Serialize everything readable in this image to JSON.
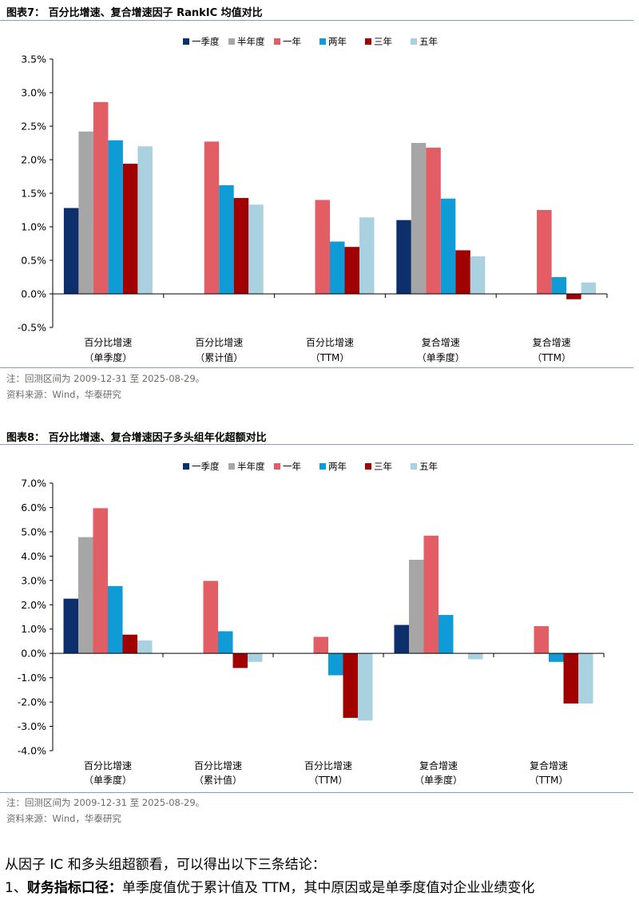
{
  "figure7": {
    "title": "图表7：  百分比增速、复合增速因子 RankIC 均值对比",
    "note": "注：回测区间为 2009-12-31 至 2025-08-29。",
    "source": "资料来源：Wind，华泰研究"
  },
  "figure8": {
    "title": "图表8：  百分比增速、复合增速因子多头组年化超额对比",
    "note": "注：回测区间为 2009-12-31 至 2025-08-29。",
    "source": "资料来源：Wind，华泰研究"
  },
  "body_text": {
    "intro": "从因子 IC 和多头组超额看，可以得出以下三条结论：",
    "item1_number": "1、",
    "item1_bold": "财务指标口径：",
    "item1_text": "单季度值优于累计值及 TTM，其中原因或是单季度值对企业业绩变化"
  },
  "colors": {
    "一季度": "#0d2f6b",
    "半年度": "#a6a6a6",
    "一年": "#e35d64",
    "两年": "#0e9bd6",
    "三年": "#a00000",
    "五年": "#a9d1e0"
  },
  "chart_data": [
    {
      "type": "bar",
      "title": "百分比增速、复合增速因子 RankIC 均值对比",
      "categories": [
        [
          "百分比增速",
          "（单季度）"
        ],
        [
          "百分比增速",
          "（累计值）"
        ],
        [
          "百分比增速",
          "（TTM）"
        ],
        [
          "复合增速",
          "（单季度）"
        ],
        [
          "复合增速",
          "（TTM）"
        ]
      ],
      "series": [
        {
          "name": "一季度",
          "values": [
            1.28,
            null,
            null,
            1.1,
            null
          ]
        },
        {
          "name": "半年度",
          "values": [
            2.42,
            null,
            null,
            2.25,
            null
          ]
        },
        {
          "name": "一年",
          "values": [
            2.86,
            2.27,
            1.4,
            2.18,
            1.25
          ]
        },
        {
          "name": "两年",
          "values": [
            2.29,
            1.62,
            0.78,
            1.42,
            0.25
          ]
        },
        {
          "name": "三年",
          "values": [
            1.94,
            1.43,
            0.7,
            0.65,
            -0.08
          ]
        },
        {
          "name": "五年",
          "values": [
            2.2,
            1.33,
            1.14,
            0.56,
            0.17
          ]
        }
      ],
      "ylim": [
        -0.5,
        3.5
      ],
      "yticks": [
        -0.5,
        0.0,
        0.5,
        1.0,
        1.5,
        2.0,
        2.5,
        3.0,
        3.5
      ],
      "ytick_labels": [
        "-0.5%",
        "0.0%",
        "0.5%",
        "1.0%",
        "1.5%",
        "2.0%",
        "2.5%",
        "3.0%",
        "3.5%"
      ],
      "legend": "top-center"
    },
    {
      "type": "bar",
      "title": "百分比增速、复合增速因子多头组年化超额对比",
      "categories": [
        [
          "百分比增速",
          "（单季度）"
        ],
        [
          "百分比增速",
          "（累计值）"
        ],
        [
          "百分比增速",
          "（TTM）"
        ],
        [
          "复合增速",
          "（单季度）"
        ],
        [
          "复合增速",
          "（TTM）"
        ]
      ],
      "series": [
        {
          "name": "一季度",
          "values": [
            2.25,
            null,
            null,
            1.17,
            null
          ]
        },
        {
          "name": "半年度",
          "values": [
            4.78,
            null,
            null,
            3.85,
            null
          ]
        },
        {
          "name": "一年",
          "values": [
            5.97,
            2.98,
            0.68,
            4.84,
            1.12
          ]
        },
        {
          "name": "两年",
          "values": [
            2.77,
            0.91,
            -0.9,
            1.58,
            -0.35
          ]
        },
        {
          "name": "三年",
          "values": [
            0.77,
            -0.6,
            -2.65,
            null,
            -2.06
          ]
        },
        {
          "name": "五年",
          "values": [
            0.53,
            -0.35,
            -2.76,
            -0.24,
            -2.06
          ]
        }
      ],
      "ylim": [
        -4.0,
        7.0
      ],
      "yticks": [
        -4,
        -3,
        -2,
        -1,
        0,
        1,
        2,
        3,
        4,
        5,
        6,
        7
      ],
      "ytick_labels": [
        "-4.0%",
        "-3.0%",
        "-2.0%",
        "-1.0%",
        "0.0%",
        "1.0%",
        "2.0%",
        "3.0%",
        "4.0%",
        "5.0%",
        "6.0%",
        "7.0%"
      ],
      "legend": "top-center"
    }
  ]
}
